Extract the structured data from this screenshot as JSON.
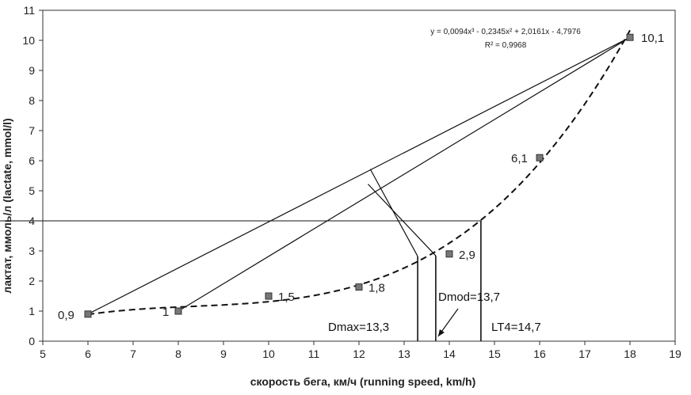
{
  "chart_data": {
    "type": "scatter",
    "xlabel": "скорость бега, км/ч (running speed, km/h)",
    "ylabel": "лактат, ммоль/л (lactate, mmol/l)",
    "xlim": [
      5,
      19
    ],
    "ylim": [
      0,
      11
    ],
    "x_ticks": [
      "5",
      "6",
      "7",
      "8",
      "9",
      "10",
      "11",
      "12",
      "13",
      "14",
      "15",
      "16",
      "17",
      "18",
      "19"
    ],
    "y_ticks": [
      "0",
      "1",
      "2",
      "3",
      "4",
      "5",
      "6",
      "7",
      "8",
      "9",
      "10",
      "11"
    ],
    "grid": false,
    "points": [
      {
        "x": 6,
        "y": 0.9,
        "label": "0,9"
      },
      {
        "x": 8,
        "y": 1.0,
        "label": "1"
      },
      {
        "x": 10,
        "y": 1.5,
        "label": "1,5"
      },
      {
        "x": 12,
        "y": 1.8,
        "label": "1,8"
      },
      {
        "x": 14,
        "y": 2.9,
        "label": "2,9"
      },
      {
        "x": 16,
        "y": 6.1,
        "label": "6,1"
      },
      {
        "x": 18,
        "y": 10.1,
        "label": "10,1"
      }
    ],
    "trendline": {
      "type": "polynomial",
      "coefficients": [
        0.0094,
        -0.2345,
        2.0161,
        -4.7976
      ],
      "x_range": [
        6,
        18
      ],
      "equation": "y = 0,0094x³ - 0,2345x² + 2,0161x - 4,7976",
      "r_squared": "R² = 0,9968"
    },
    "reference_lines": [
      {
        "from": [
          6,
          0.9
        ],
        "to": [
          18,
          10.1
        ]
      },
      {
        "from": [
          8,
          1.0
        ],
        "to": [
          18,
          10.1
        ]
      }
    ],
    "perpendiculars": [
      {
        "from": [
          12.25,
          5.72
        ],
        "to": [
          13.3,
          2.82
        ]
      },
      {
        "from": [
          12.2,
          5.22
        ],
        "to": [
          13.7,
          2.84
        ]
      }
    ],
    "threshold_line": {
      "y": 4,
      "x_end": 14.7
    },
    "verticals": [
      13.3,
      13.7,
      14.7
    ],
    "annotations": {
      "dmax": "Dmax=13,3",
      "dmod": "Dmod=13,7",
      "lt4": "LT4=14,7"
    }
  }
}
